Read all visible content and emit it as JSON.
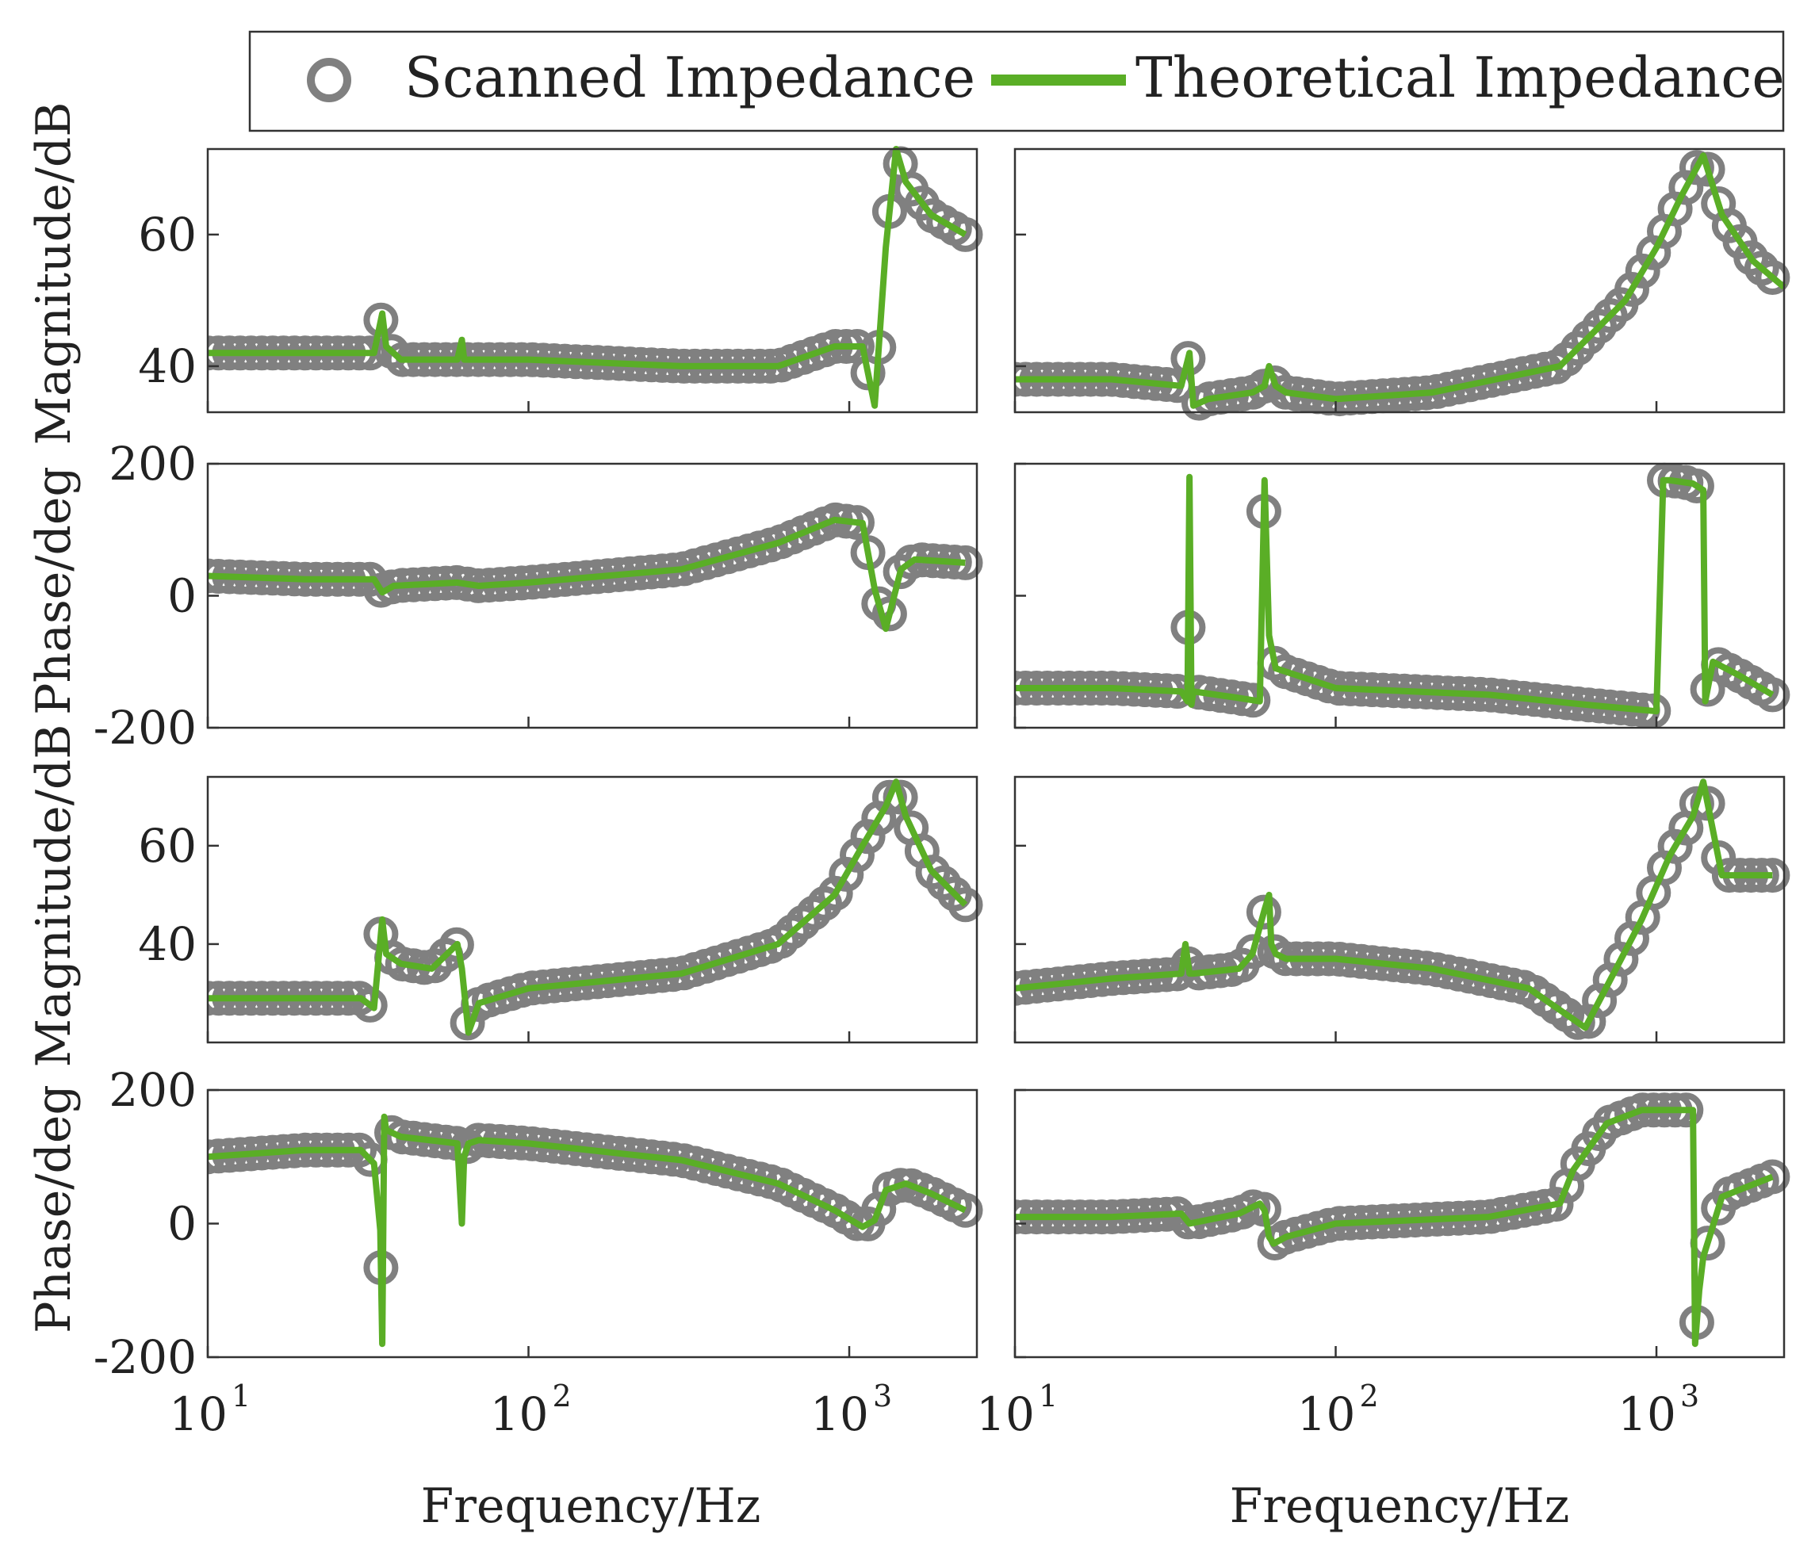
{
  "legend": {
    "scanned_label": "Scanned Impedance",
    "theoretical_label": "Theoretical Impedance"
  },
  "colors": {
    "scanned": "#808080",
    "theoretical": "#5aae26"
  },
  "chart_data": [
    {
      "id": "mag1",
      "type": "line",
      "position": "row1-left",
      "ylabel": "Magnitude/dB",
      "xscale": "log",
      "xlim": [
        10,
        2500
      ],
      "ylim": [
        33,
        73
      ],
      "yticks": [
        40,
        60
      ],
      "series": [
        {
          "name": "Theoretical Impedance",
          "x": [
            10,
            20,
            33,
            35,
            36,
            40,
            60,
            62,
            63,
            70,
            100,
            300,
            600,
            900,
            1100,
            1200,
            1300,
            1400,
            1500,
            1800,
            2300
          ],
          "y": [
            42,
            42,
            42,
            48,
            43,
            41,
            41,
            44,
            41,
            41,
            41,
            40,
            40,
            43,
            43,
            34,
            58,
            73,
            68,
            63,
            60
          ]
        }
      ]
    },
    {
      "id": "mag2",
      "type": "line",
      "position": "row1-right",
      "ylabel": "",
      "xscale": "log",
      "xlim": [
        10,
        2500
      ],
      "ylim": [
        33,
        73
      ],
      "yticks": [
        40,
        60
      ],
      "series": [
        {
          "name": "Theoretical Impedance",
          "x": [
            10,
            20,
            33,
            35,
            36,
            40,
            55,
            60,
            62,
            65,
            70,
            100,
            200,
            500,
            800,
            1000,
            1200,
            1400,
            1600,
            2000,
            2500
          ],
          "y": [
            38,
            38,
            37,
            42,
            34,
            35,
            36,
            37,
            40,
            37,
            36,
            35,
            36,
            40,
            50,
            58,
            66,
            72,
            63,
            56,
            52
          ]
        }
      ]
    },
    {
      "id": "ph1",
      "type": "line",
      "position": "row2-left",
      "ylabel": "Phase/deg",
      "xscale": "log",
      "xlim": [
        10,
        2500
      ],
      "ylim": [
        -200,
        200
      ],
      "yticks": [
        -200,
        0,
        200
      ],
      "series": [
        {
          "name": "Theoretical Impedance",
          "x": [
            10,
            20,
            33,
            35,
            38,
            60,
            70,
            100,
            300,
            600,
            900,
            1100,
            1200,
            1300,
            1450,
            1600,
            2300
          ],
          "y": [
            30,
            25,
            25,
            5,
            15,
            20,
            15,
            20,
            40,
            80,
            115,
            110,
            10,
            -50,
            40,
            55,
            50
          ]
        }
      ]
    },
    {
      "id": "ph2",
      "type": "line",
      "position": "row2-right",
      "ylabel": "",
      "xscale": "log",
      "xlim": [
        10,
        2500
      ],
      "ylim": [
        -200,
        200
      ],
      "yticks": [
        -200,
        0,
        200
      ],
      "series": [
        {
          "name": "Theoretical Impedance",
          "x": [
            10,
            20,
            33,
            34.5,
            35,
            35.5,
            36,
            50,
            58,
            60,
            62,
            65,
            100,
            300,
            600,
            1000,
            1050,
            1100,
            1300,
            1400,
            1420,
            1500,
            1800,
            2300
          ],
          "y": [
            -140,
            -140,
            -145,
            -160,
            180,
            -165,
            -145,
            -155,
            -160,
            175,
            -60,
            -110,
            -140,
            -150,
            -165,
            -175,
            175,
            175,
            170,
            160,
            -160,
            -100,
            -120,
            -150
          ]
        }
      ]
    },
    {
      "id": "mag3",
      "type": "line",
      "position": "row3-left",
      "ylabel": "Magnitude/dB",
      "xscale": "log",
      "xlim": [
        10,
        2500
      ],
      "ylim": [
        20,
        74
      ],
      "yticks": [
        40,
        60
      ],
      "series": [
        {
          "name": "Theoretical Impedance",
          "x": [
            10,
            20,
            30,
            33,
            35,
            36,
            40,
            50,
            60,
            62,
            65,
            70,
            100,
            300,
            600,
            900,
            1100,
            1300,
            1400,
            1500,
            1800,
            2300
          ],
          "y": [
            29,
            29,
            29,
            27,
            45,
            38,
            36,
            35,
            40,
            35,
            22,
            28,
            31,
            34,
            40,
            50,
            60,
            68,
            73,
            66,
            55,
            48
          ]
        }
      ]
    },
    {
      "id": "mag4",
      "type": "line",
      "position": "row3-right",
      "ylabel": "",
      "xscale": "log",
      "xlim": [
        10,
        2500
      ],
      "ylim": [
        20,
        74
      ],
      "yticks": [
        40,
        60
      ],
      "series": [
        {
          "name": "Theoretical Impedance",
          "x": [
            10,
            20,
            33,
            34,
            35,
            36,
            50,
            55,
            60,
            62,
            63,
            65,
            70,
            100,
            200,
            400,
            600,
            900,
            1100,
            1300,
            1400,
            1600,
            2300
          ],
          "y": [
            31,
            33,
            34,
            40,
            34,
            34,
            35,
            38,
            47,
            50,
            40,
            38,
            37,
            37,
            35,
            31,
            23,
            45,
            58,
            66,
            73,
            54,
            54
          ]
        }
      ]
    },
    {
      "id": "ph3",
      "type": "line",
      "position": "row4-left",
      "ylabel": "Phase/deg",
      "xscale": "log",
      "xlim": [
        10,
        2500
      ],
      "ylim": [
        -200,
        200
      ],
      "yticks": [
        -200,
        0,
        200
      ],
      "series": [
        {
          "name": "Theoretical Impedance",
          "x": [
            10,
            20,
            30,
            33,
            34.5,
            35,
            35.5,
            36,
            40,
            60,
            62,
            63,
            65,
            70,
            100,
            300,
            600,
            900,
            1100,
            1200,
            1300,
            1500,
            1800,
            2300
          ],
          "y": [
            100,
            110,
            110,
            90,
            -10,
            -180,
            160,
            140,
            130,
            120,
            0,
            100,
            120,
            125,
            120,
            95,
            60,
            20,
            -5,
            5,
            50,
            60,
            45,
            20
          ]
        }
      ]
    },
    {
      "id": "ph4",
      "type": "line",
      "position": "row4-right",
      "ylabel": "",
      "xscale": "log",
      "xlim": [
        10,
        2500
      ],
      "ylim": [
        -200,
        200
      ],
      "yticks": [
        -200,
        0,
        200
      ],
      "series": [
        {
          "name": "Theoretical Impedance",
          "x": [
            10,
            20,
            33,
            35,
            50,
            58,
            60,
            62,
            64,
            70,
            100,
            300,
            500,
            550,
            700,
            900,
            1100,
            1300,
            1320,
            1360,
            1400,
            1600,
            1800,
            2300
          ],
          "y": [
            10,
            10,
            15,
            0,
            15,
            30,
            20,
            -20,
            -30,
            -20,
            0,
            10,
            30,
            80,
            150,
            170,
            170,
            170,
            -180,
            -100,
            -50,
            40,
            50,
            70
          ]
        }
      ]
    }
  ],
  "shared": {
    "xticks": [
      10,
      100,
      1000
    ],
    "xtick_labels": [
      "10",
      "10",
      "10"
    ],
    "xtick_exponents": [
      "1",
      "2",
      "3"
    ],
    "xlabel": "Frequency/Hz"
  }
}
